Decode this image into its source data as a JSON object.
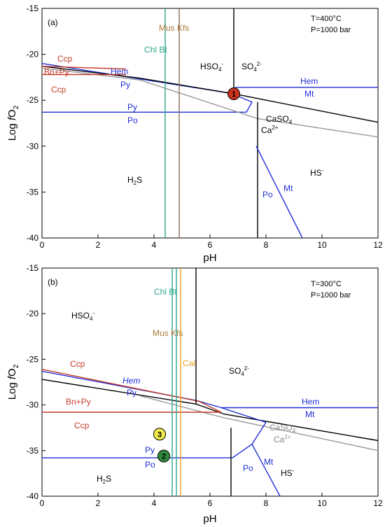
{
  "chart_data": [
    {
      "panel": "(a)",
      "type": "line",
      "xlabel": "pH",
      "ylabel": "Log fO2",
      "xlim": [
        0,
        12
      ],
      "ylim": [
        -40,
        -15
      ],
      "xticks": [
        "0",
        "2",
        "4",
        "6",
        "8",
        "10",
        "12"
      ],
      "yticks": [
        "-15",
        "-20",
        "-25",
        "-30",
        "-35",
        "-40"
      ],
      "conditions": [
        "T=400°C",
        "P=1000 bar"
      ],
      "lines": [
        {
          "name": "HSO4/SO4",
          "color": "#000000",
          "x": [
            6.85,
            6.85
          ],
          "y": [
            -15,
            -24.3
          ]
        },
        {
          "name": "Hem/Mt",
          "color": "#1f2fd6",
          "x": [
            6.9,
            12
          ],
          "y": [
            -23.6,
            -23.6
          ]
        },
        {
          "name": "Hem/Py",
          "color": "#1f2fd6",
          "x": [
            0,
            6.85
          ],
          "y": [
            -21.0,
            -24.3
          ]
        },
        {
          "name": "Py/Po",
          "color": "#1f2fd6",
          "x": [
            0,
            7.3
          ],
          "y": [
            -26.3,
            -26.3
          ]
        },
        {
          "name": "Hem/Mt-Py",
          "color": "#1f2fd6",
          "x": [
            6.95,
            7.5,
            7.3
          ],
          "y": [
            -24.5,
            -25.2,
            -26.3
          ]
        },
        {
          "name": "sulfate/sulfide",
          "color": "#000000",
          "x": [
            0,
            3.5,
            6.85,
            12
          ],
          "y": [
            -21.3,
            -22.6,
            -24.3,
            -27.4
          ]
        },
        {
          "name": "CaSO4/Ca2+",
          "color": "#999999",
          "x": [
            0,
            3.5,
            7.7,
            12
          ],
          "y": [
            -21.5,
            -22.8,
            -27.0,
            -29.0
          ]
        },
        {
          "name": "H2S/HS-",
          "color": "#000000",
          "x": [
            7.7,
            7.7
          ],
          "y": [
            -25.2,
            -40
          ]
        },
        {
          "name": "Po/Mt",
          "color": "#1f2fd6",
          "x": [
            7.65,
            9.3
          ],
          "y": [
            -30.0,
            -40
          ]
        },
        {
          "name": "Ccp/Bn+Py upper",
          "color": "#c43a2a",
          "x": [
            0,
            3.0
          ],
          "y": [
            -21.3,
            -21.6
          ]
        },
        {
          "name": "Ccp/Bn+Py lower",
          "color": "#c43a2a",
          "x": [
            0,
            3.0
          ],
          "y": [
            -22.2,
            -22.2
          ]
        },
        {
          "name": "Chl/Bt",
          "color": "#2aa58c",
          "x": [
            4.4,
            4.4
          ],
          "y": [
            -15,
            -40
          ]
        },
        {
          "name": "Mus/Kfs",
          "color": "#8b6b5a",
          "x": [
            4.9,
            4.9
          ],
          "y": [
            -15,
            -40
          ]
        }
      ],
      "labels": [
        "Mus Kfs",
        "Chl Bt",
        "Ccp",
        "Bn+Py",
        "Ccp",
        "Hem",
        "Py",
        "Py",
        "Po",
        "HSO4-",
        "SO42-",
        "Hem",
        "Mt",
        "CaSO4",
        "Ca2+",
        "H2S",
        "HS-",
        "Po",
        "Mt"
      ],
      "points": [
        {
          "label": "1",
          "x": 6.85,
          "y": -24.3,
          "color": "#c8321e"
        }
      ]
    },
    {
      "panel": "(b)",
      "type": "line",
      "xlabel": "pH",
      "ylabel": "Log fO2",
      "xlim": [
        0,
        12
      ],
      "ylim": [
        -40,
        -15
      ],
      "xticks": [
        "0",
        "2",
        "4",
        "6",
        "8",
        "10",
        "12"
      ],
      "yticks": [
        "-15",
        "-20",
        "-25",
        "-30",
        "-35",
        "-40"
      ],
      "conditions": [
        "T=300°C",
        "P=1000 bar"
      ],
      "lines": [
        {
          "name": "sulfate/sulfide",
          "color": "#000000",
          "x": [
            0,
            5.5,
            6.5,
            12
          ],
          "y": [
            -27.2,
            -29.9,
            -31.0,
            -33.9
          ]
        },
        {
          "name": "CaSO4/Ca2+",
          "color": "#999999",
          "x": [
            3.5,
            6.5,
            12
          ],
          "y": [
            -29.0,
            -31.4,
            -35.0
          ]
        },
        {
          "name": "Hem/Py",
          "color": "#1f2fd6",
          "x": [
            0,
            5.5,
            6.4,
            8.0
          ],
          "y": [
            -26.3,
            -29.5,
            -30.3,
            -31.9
          ]
        },
        {
          "name": "Hem/Mt",
          "color": "#1f2fd6",
          "x": [
            6.4,
            12
          ],
          "y": [
            -30.3,
            -30.3
          ]
        },
        {
          "name": "Py/Po",
          "color": "#1f2fd6",
          "x": [
            0,
            6.8
          ],
          "y": [
            -35.8,
            -35.8
          ]
        },
        {
          "name": "Py/Po-Mt",
          "color": "#1f2fd6",
          "x": [
            6.8,
            7.5,
            8.0
          ],
          "y": [
            -35.8,
            -34.3,
            -31.9
          ]
        },
        {
          "name": "Po/Mt",
          "color": "#1f2fd6",
          "x": [
            7.5,
            8.5
          ],
          "y": [
            -34.3,
            -40
          ]
        },
        {
          "name": "H2S/HS-",
          "color": "#000000",
          "x": [
            6.75,
            6.75
          ],
          "y": [
            -32.5,
            -40
          ]
        },
        {
          "name": "Ccp/Bn+Py upper",
          "color": "#c43a2a",
          "x": [
            0,
            5.6,
            6.4
          ],
          "y": [
            -26.1,
            -29.6,
            -30.8
          ]
        },
        {
          "name": "Ccp/Bn+Py lower",
          "color": "#c43a2a",
          "x": [
            0,
            6.4
          ],
          "y": [
            -30.8,
            -30.8
          ]
        },
        {
          "name": "Mus/Kfs",
          "color": "#000000",
          "x": [
            5.5,
            5.5
          ],
          "y": [
            -15,
            -29.9
          ]
        },
        {
          "name": "Chl",
          "color": "#2aa58c",
          "x": [
            4.65,
            4.65
          ],
          "y": [
            -15,
            -40
          ]
        },
        {
          "name": "Bt",
          "color": "#2aa58c",
          "x": [
            4.8,
            4.8
          ],
          "y": [
            -15,
            -40
          ]
        },
        {
          "name": "Cal",
          "color": "#e8a020",
          "x": [
            4.95,
            4.95
          ],
          "y": [
            -15,
            -40
          ]
        }
      ],
      "labels": [
        "Chl Bt",
        "HSO4-",
        "Mus Kfs",
        "Cal",
        "Ccp",
        "SO42-",
        "Hem",
        "Py",
        "Bn+Py",
        "Hem",
        "Mt",
        "Ccp",
        "CaSO4",
        "Ca2+",
        "Py",
        "Po",
        "H2S",
        "Po",
        "Mt",
        "HS-"
      ],
      "points": [
        {
          "label": "3",
          "x": 4.2,
          "y": -33.2,
          "color": "#f0ea4a"
        },
        {
          "label": "2",
          "x": 4.35,
          "y": -35.6,
          "color": "#2e8b3a"
        }
      ]
    }
  ],
  "text": {
    "a": {
      "panel": "(a)",
      "cond1": "T=400°C",
      "cond2": "P=1000 bar",
      "mus_kfs": "Mus Kfs",
      "chl_bt": "Chl Bt",
      "ccp1": "Ccp",
      "bnpy": "Bn+Py",
      "ccp2": "Ccp",
      "hem1": "Hem",
      "py1": "Py",
      "py2": "Py",
      "po1": "Po",
      "hso4": "HSO",
      "hso4_sub": "4",
      "hso4_sup": "-",
      "so4": "SO",
      "so4_sub": "4",
      "so4_sup": "2-",
      "hem2": "Hem",
      "mt1": "Mt",
      "caso4": "CaSO",
      "caso4_sub": "4",
      "ca": "Ca",
      "ca_sup": "2+",
      "h2s": "H",
      "h2s_sub": "2",
      "h2s_end": "S",
      "hs": "HS",
      "hs_sup": "-",
      "po2": "Po",
      "mt2": "Mt",
      "pt": "1",
      "xlabel": "pH",
      "ylab_pre": "Log ",
      "ylab_f": "f",
      "ylab_o": "O",
      "ylab_sub": "2"
    },
    "b": {
      "panel": "(b)",
      "cond1": "T=300°C",
      "cond2": "P=1000 bar",
      "chl_bt": "Chl Bt",
      "hso4": "HSO",
      "hso4_sub": "4",
      "hso4_sup": "-",
      "mus_kfs": "Mus Kfs",
      "cal": "Cal",
      "ccp1": "Ccp",
      "so4": "SO",
      "so4_sub": "4",
      "so4_sup": "2-",
      "hem1": "Hem",
      "py1": "Py",
      "bnpy": "Bn+Py",
      "hem2": "Hem",
      "mt1": "Mt",
      "ccp2": "Ccp",
      "caso4": "CaSO",
      "caso4_sub": "4",
      "ca": "Ca",
      "ca_sup": "2+",
      "py2": "Py",
      "po1": "Po",
      "h2s": "H",
      "h2s_sub": "2",
      "h2s_end": "S",
      "po2": "Po",
      "mt2": "Mt",
      "hs": "HS",
      "hs_sup": "-",
      "pt3": "3",
      "pt2": "2",
      "xlabel": "pH",
      "ylab_pre": "Log ",
      "ylab_f": "f",
      "ylab_o": "O",
      "ylab_sub": "2"
    }
  }
}
